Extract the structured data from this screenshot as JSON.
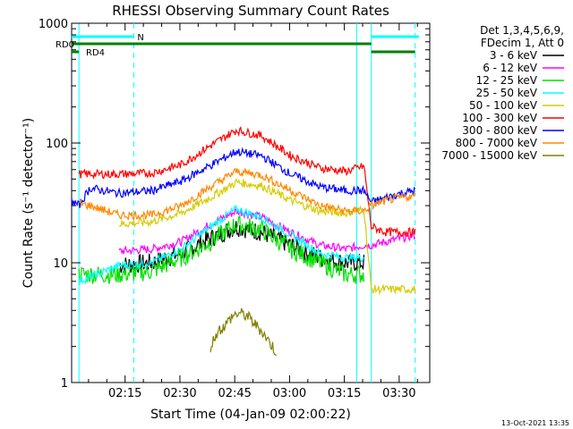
{
  "chart_data": {
    "type": "line",
    "title": "RHESSI Observing Summary Count Rates",
    "xlabel": "Start Time (04-Jan-09 02:00:22)",
    "ylabel": "Count Rate (s⁻¹ detector⁻¹)",
    "yscale": "log",
    "ylim": [
      1,
      1000
    ],
    "xlim_minutes": [
      0,
      98
    ],
    "x_ticks": [
      "02:15",
      "02:30",
      "02:45",
      "03:00",
      "03:15",
      "03:30"
    ],
    "y_tick_labels": [
      "1",
      "10",
      "100",
      "1000"
    ],
    "grid": false,
    "legend_position": "right",
    "legend_header": [
      "Det 1,3,4,5,6,9,",
      "FDecim 1, Att 0"
    ],
    "bands": [
      {
        "name": "3 - 6 keV",
        "color": "#000000",
        "minutes": [
          13,
          22,
          30,
          38,
          45,
          52,
          60,
          68,
          75,
          80
        ],
        "values": [
          9.5,
          10,
          12,
          16,
          20,
          18,
          14,
          11,
          10,
          10
        ]
      },
      {
        "name": "6 - 12 keV",
        "color": "#ff00ff",
        "minutes": [
          13,
          22,
          30,
          38,
          45,
          52,
          60,
          68,
          75,
          80,
          82,
          86,
          90,
          94
        ],
        "values": [
          12.5,
          13,
          15,
          21,
          27,
          24,
          18,
          14,
          13,
          14,
          14,
          15,
          16,
          17
        ]
      },
      {
        "name": "12 - 25 keV",
        "color": "#00e000",
        "minutes": [
          2,
          13,
          22,
          30,
          38,
          45,
          52,
          60,
          68,
          75,
          80
        ],
        "values": [
          8,
          8,
          8.5,
          11,
          15,
          21,
          19,
          13,
          10,
          8,
          8
        ]
      },
      {
        "name": "25 - 50 keV",
        "color": "#00ffff",
        "minutes": [
          2,
          13,
          22,
          30,
          38,
          45,
          52,
          60,
          68,
          75,
          80
        ],
        "values": [
          7,
          9.5,
          10,
          13,
          20,
          28,
          24,
          17,
          12,
          11,
          11
        ]
      },
      {
        "name": "50 - 100 keV",
        "color": "#d4cc00",
        "minutes": [
          13,
          22,
          30,
          38,
          45,
          52,
          60,
          68,
          75,
          80,
          82,
          86,
          90,
          94
        ],
        "values": [
          21,
          22,
          26,
          35,
          47,
          44,
          33,
          27,
          26,
          28,
          6,
          6,
          6,
          6
        ]
      },
      {
        "name": "100 - 300 keV",
        "color": "#ff0000",
        "minutes": [
          2,
          5,
          13,
          22,
          30,
          38,
          45,
          52,
          60,
          68,
          75,
          80,
          82,
          86,
          90,
          94
        ],
        "values": [
          55,
          55,
          55,
          56,
          66,
          95,
          128,
          115,
          78,
          62,
          58,
          64,
          20,
          18,
          18,
          18
        ]
      },
      {
        "name": "300 - 800 keV",
        "color": "#0000ff",
        "minutes": [
          0,
          2,
          5,
          13,
          22,
          30,
          38,
          45,
          52,
          60,
          68,
          75,
          80,
          82,
          86,
          90,
          94
        ],
        "values": [
          33,
          30,
          42,
          38,
          40,
          48,
          65,
          85,
          78,
          55,
          43,
          40,
          40,
          32,
          35,
          38,
          40
        ]
      },
      {
        "name": "800 - 7000 keV",
        "color": "#ff8800",
        "minutes": [
          2,
          5,
          13,
          22,
          30,
          38,
          45,
          52,
          60,
          68,
          75,
          80,
          82,
          86,
          90,
          94
        ],
        "values": [
          31,
          30,
          25,
          25,
          30,
          43,
          58,
          54,
          40,
          30,
          27,
          27,
          30,
          33,
          35,
          36
        ]
      },
      {
        "name": "7000 - 15000 keV",
        "color": "#808000",
        "minutes": [
          38,
          40,
          42,
          44,
          46,
          48,
          50,
          52,
          54,
          56
        ],
        "values": [
          2,
          2.7,
          3,
          3.6,
          3.8,
          3.6,
          3.1,
          2.7,
          2.2,
          1.8
        ]
      }
    ],
    "flags": [
      {
        "label": "N",
        "color": "#00ffff",
        "segments": [
          [
            0,
            17
          ],
          [
            82,
            95
          ]
        ]
      },
      {
        "label": "RD0",
        "color": "#008000",
        "segments": [
          [
            0,
            82
          ]
        ]
      },
      {
        "label": "RD4",
        "color": "#008000",
        "segments": [
          [
            0,
            2
          ],
          [
            82,
            94
          ]
        ]
      }
    ],
    "vertical_markers_minutes": [
      {
        "at": 2,
        "style": "solid"
      },
      {
        "at": 17,
        "style": "dashed"
      },
      {
        "at": 78,
        "style": "solid"
      },
      {
        "at": 82,
        "style": "solid"
      },
      {
        "at": 94,
        "style": "dashed"
      }
    ]
  },
  "footer": {
    "timestamp": "13-Oct-2021 13:35"
  }
}
